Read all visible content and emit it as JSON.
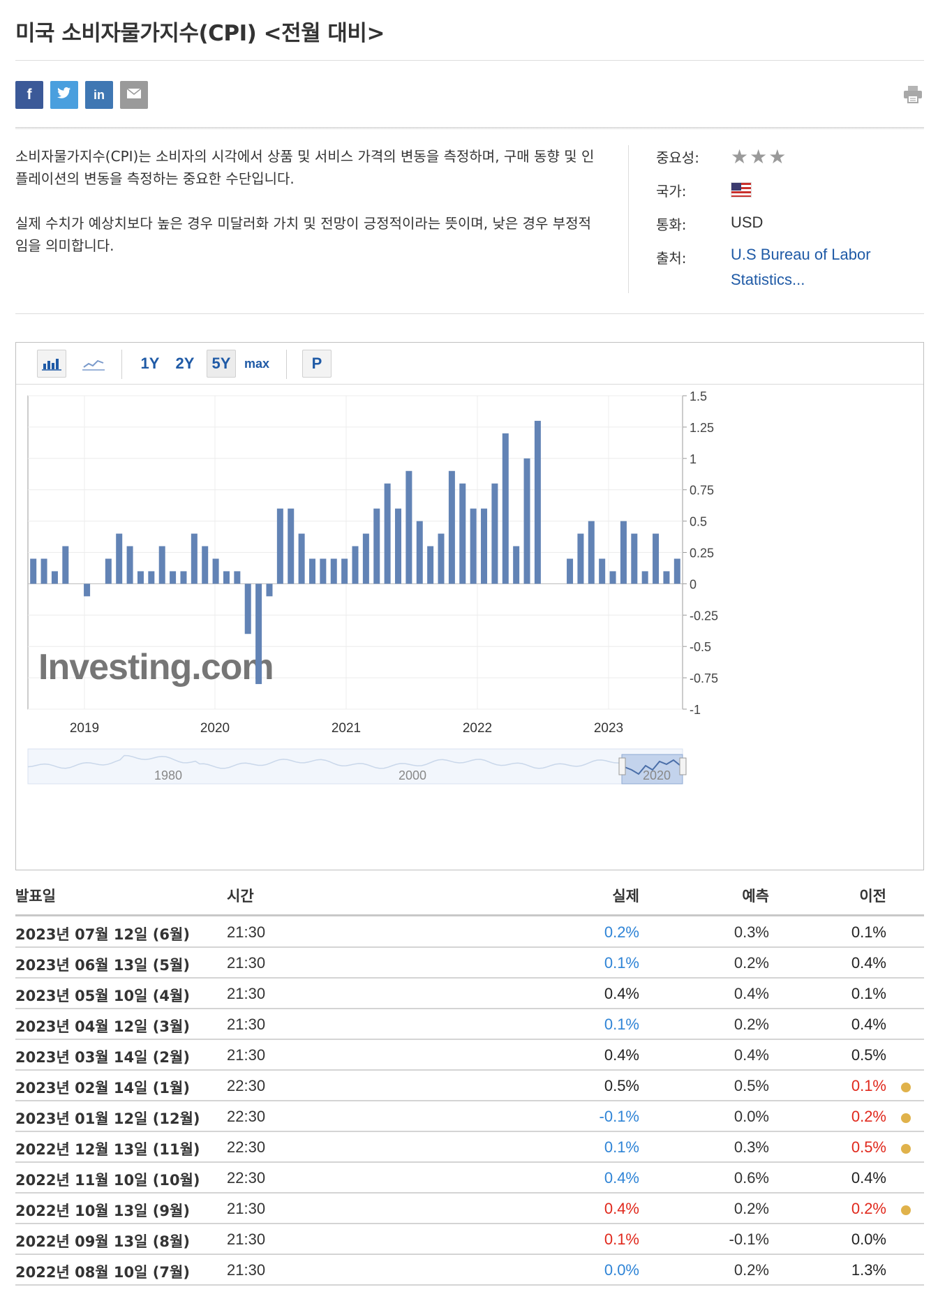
{
  "page_title": "미국 소비자물가지수(CPI) <전월 대비>",
  "share_buttons": [
    "f",
    "t",
    "in",
    "✉"
  ],
  "description": [
    "소비자물가지수(CPI)는 소비자의 시각에서 상품 및 서비스 가격의 변동을 측정하며, 구매 동향 및 인플레이션의 변동을 측정하는 중요한 수단입니다.",
    "실제 수치가 예상치보다 높은 경우 미달러화 가치 및 전망이 긍정적이라는 뜻이며, 낮은 경우 부정적임을 의미합니다."
  ],
  "meta": {
    "importance_label": "중요성:",
    "country_label": "국가:",
    "currency_label": "통화:",
    "currency_value": "USD",
    "source_label": "출처:",
    "source_value": "U.S Bureau of Labor Statistics..."
  },
  "toolbar": {
    "range_1y": "1Y",
    "range_2y": "2Y",
    "range_5y": "5Y",
    "range_max": "max",
    "p_label": "P"
  },
  "colors": {
    "bar": "#6283b5",
    "positive": "#2f84d6",
    "negative": "#e0281c",
    "dot": "#e0b24b",
    "link": "#1f5aa6"
  },
  "chart_data": {
    "type": "bar",
    "title": "",
    "watermark": "Investing.com",
    "ylim": [
      -1,
      1.5
    ],
    "y_ticks": [
      1.5,
      1.25,
      1,
      0.75,
      0.5,
      0.25,
      0,
      -0.25,
      -0.5,
      -0.75,
      -1
    ],
    "y_tick_labels": [
      "1.5",
      "1.25",
      "1",
      "0.75",
      "0.5",
      "0.25",
      "0",
      "-0.25",
      "-0.5",
      "-0.75",
      "-1"
    ],
    "x_year_labels": [
      "2019",
      "2020",
      "2021",
      "2022",
      "2023"
    ],
    "navigator_labels": [
      "1980",
      "2000",
      "2020"
    ],
    "series": [
      {
        "name": "미국 소비자물가지수(CPI) <전월 대비>",
        "values": [
          0.2,
          0.2,
          0.1,
          0.3,
          null,
          -0.1,
          null,
          0.2,
          0.4,
          0.3,
          0.1,
          0.1,
          0.3,
          0.1,
          0.1,
          0.4,
          0.3,
          0.2,
          0.1,
          0.1,
          -0.4,
          -0.8,
          -0.1,
          0.6,
          0.6,
          0.4,
          0.2,
          0.2,
          0.2,
          0.2,
          0.3,
          0.4,
          0.6,
          0.8,
          0.6,
          0.9,
          0.5,
          0.3,
          0.4,
          0.9,
          0.8,
          0.6,
          0.6,
          0.8,
          1.2,
          0.3,
          1.0,
          1.3,
          null,
          null,
          0.2,
          0.4,
          0.5,
          0.2,
          0.1,
          0.5,
          0.4,
          0.1,
          0.4,
          0.1,
          0.2
        ]
      }
    ]
  },
  "table": {
    "headers": {
      "date": "발표일",
      "time": "시간",
      "actual": "실제",
      "forecast": "예측",
      "previous": "이전"
    },
    "rows": [
      {
        "date": "2023년 07월 12일 (6월)",
        "time": "21:30",
        "actual": "0.2%",
        "actual_color": "positive",
        "forecast": "0.3%",
        "previous": "0.1%",
        "prev_color": "",
        "dot": false
      },
      {
        "date": "2023년 06월 13일 (5월)",
        "time": "21:30",
        "actual": "0.1%",
        "actual_color": "positive",
        "forecast": "0.2%",
        "previous": "0.4%",
        "prev_color": "",
        "dot": false
      },
      {
        "date": "2023년 05월 10일 (4월)",
        "time": "21:30",
        "actual": "0.4%",
        "actual_color": "",
        "forecast": "0.4%",
        "previous": "0.1%",
        "prev_color": "",
        "dot": false
      },
      {
        "date": "2023년 04월 12일 (3월)",
        "time": "21:30",
        "actual": "0.1%",
        "actual_color": "positive",
        "forecast": "0.2%",
        "previous": "0.4%",
        "prev_color": "",
        "dot": false
      },
      {
        "date": "2023년 03월 14일 (2월)",
        "time": "21:30",
        "actual": "0.4%",
        "actual_color": "",
        "forecast": "0.4%",
        "previous": "0.5%",
        "prev_color": "",
        "dot": false
      },
      {
        "date": "2023년 02월 14일 (1월)",
        "time": "22:30",
        "actual": "0.5%",
        "actual_color": "",
        "forecast": "0.5%",
        "previous": "0.1%",
        "prev_color": "negative",
        "dot": true
      },
      {
        "date": "2023년 01월 12일 (12월)",
        "time": "22:30",
        "actual": "-0.1%",
        "actual_color": "positive",
        "forecast": "0.0%",
        "previous": "0.2%",
        "prev_color": "negative",
        "dot": true
      },
      {
        "date": "2022년 12월 13일 (11월)",
        "time": "22:30",
        "actual": "0.1%",
        "actual_color": "positive",
        "forecast": "0.3%",
        "previous": "0.5%",
        "prev_color": "negative",
        "dot": true
      },
      {
        "date": "2022년 11월 10일 (10월)",
        "time": "22:30",
        "actual": "0.4%",
        "actual_color": "positive",
        "forecast": "0.6%",
        "previous": "0.4%",
        "prev_color": "",
        "dot": false
      },
      {
        "date": "2022년 10월 13일 (9월)",
        "time": "21:30",
        "actual": "0.4%",
        "actual_color": "negative",
        "forecast": "0.2%",
        "previous": "0.2%",
        "prev_color": "negative",
        "dot": true
      },
      {
        "date": "2022년 09월 13일 (8월)",
        "time": "21:30",
        "actual": "0.1%",
        "actual_color": "negative",
        "forecast": "-0.1%",
        "previous": "0.0%",
        "prev_color": "",
        "dot": false
      },
      {
        "date": "2022년 08월 10일 (7월)",
        "time": "21:30",
        "actual": "0.0%",
        "actual_color": "positive",
        "forecast": "0.2%",
        "previous": "1.3%",
        "prev_color": "",
        "dot": false
      }
    ]
  }
}
